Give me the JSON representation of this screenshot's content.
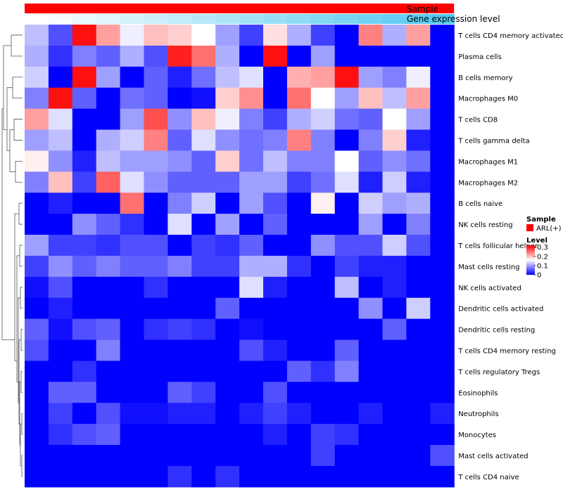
{
  "chart_data": {
    "type": "heatmap",
    "title": "",
    "annotation_labels": {
      "sample": "Sample",
      "gene_expression": "Gene expression level"
    },
    "legend": {
      "sample_title": "Sample",
      "sample_entry": "ARL(+)",
      "sample_color": "#ff0000",
      "level_title": "Level",
      "level_ticks": [
        "0.3",
        "0.2",
        "0.1",
        "0"
      ],
      "level_tick_values": [
        0.3,
        0.2,
        0.1,
        0
      ],
      "level_range": [
        0,
        0.32
      ],
      "colors": {
        "low": "#0000ff",
        "mid": "#ffffff",
        "high": "#ff0000",
        "mid_value": 0.16
      }
    },
    "gene_expression_gradient": [
      "#ffffff",
      "#50c8f0"
    ],
    "n_samples": 18,
    "rows": [
      "T cells CD4 memory activated",
      "Plasma cells",
      "B cells memory",
      "Macrophages M0",
      "T cells CD8",
      "T cells gamma delta",
      "Macrophages M1",
      "Macrophages M2",
      "B cells naive",
      "NK cells resting",
      "T cells follicular helper",
      "Mast cells resting",
      "NK cells activated",
      "Dendritic cells activated",
      "Dendritic cells resting",
      "T cells CD4 memory resting",
      "T cells regulatory  Tregs",
      "Eosinophils",
      "Neutrophils",
      "Monocytes",
      "Mast cells activated",
      "T cells CD4 naive"
    ],
    "values": [
      [
        0.12,
        0.05,
        0.31,
        0.22,
        0.15,
        0.2,
        0.19,
        0.16,
        0.1,
        0.04,
        0.18,
        0.11,
        0.04,
        0.0,
        0.24,
        0.11,
        0.22,
        0.0
      ],
      [
        0.11,
        0.03,
        0.08,
        0.06,
        0.11,
        0.05,
        0.3,
        0.25,
        0.11,
        0.0,
        0.31,
        0.0,
        0.1,
        0.0,
        0.0,
        0.0,
        0.0,
        0.0
      ],
      [
        0.13,
        0.0,
        0.31,
        0.1,
        0.0,
        0.06,
        0.02,
        0.07,
        0.12,
        0.14,
        0.0,
        0.21,
        0.22,
        0.31,
        0.1,
        0.08,
        0.15,
        0.0
      ],
      [
        0.08,
        0.31,
        0.06,
        0.0,
        0.07,
        0.06,
        0.0,
        0.01,
        0.19,
        0.23,
        0.0,
        0.25,
        0.16,
        0.1,
        0.2,
        0.12,
        0.22,
        0.0
      ],
      [
        0.22,
        0.14,
        0.0,
        0.0,
        0.1,
        0.27,
        0.09,
        0.2,
        0.15,
        0.08,
        0.04,
        0.11,
        0.13,
        0.07,
        0.06,
        0.16,
        0.1,
        0.0
      ],
      [
        0.1,
        0.12,
        0.0,
        0.11,
        0.13,
        0.24,
        0.06,
        0.14,
        0.09,
        0.07,
        0.08,
        0.24,
        0.08,
        0.0,
        0.08,
        0.19,
        0.02,
        0.0
      ],
      [
        0.17,
        0.09,
        0.02,
        0.12,
        0.1,
        0.1,
        0.09,
        0.06,
        0.19,
        0.07,
        0.12,
        0.08,
        0.08,
        0.16,
        0.06,
        0.09,
        0.07,
        0.0
      ],
      [
        0.08,
        0.2,
        0.04,
        0.26,
        0.14,
        0.09,
        0.06,
        0.06,
        0.06,
        0.1,
        0.1,
        0.04,
        0.07,
        0.14,
        0.02,
        0.13,
        0.02,
        0.0
      ],
      [
        0.0,
        0.02,
        0.0,
        0.0,
        0.25,
        0.0,
        0.08,
        0.13,
        0.0,
        0.1,
        0.05,
        0.0,
        0.17,
        0.0,
        0.13,
        0.1,
        0.11,
        0.0
      ],
      [
        0.0,
        0.0,
        0.09,
        0.06,
        0.03,
        0.0,
        0.14,
        0.0,
        0.1,
        0.0,
        0.06,
        0.0,
        0.0,
        0.0,
        0.1,
        0.0,
        0.08,
        0.0
      ],
      [
        0.1,
        0.04,
        0.04,
        0.03,
        0.05,
        0.05,
        0.0,
        0.04,
        0.03,
        0.06,
        0.0,
        0.0,
        0.09,
        0.05,
        0.05,
        0.13,
        0.05,
        0.0
      ],
      [
        0.04,
        0.09,
        0.06,
        0.08,
        0.06,
        0.06,
        0.08,
        0.04,
        0.04,
        0.11,
        0.11,
        0.03,
        0.0,
        0.04,
        0.02,
        0.02,
        0.0,
        0.0
      ],
      [
        0.01,
        0.05,
        0.0,
        0.0,
        0.0,
        0.03,
        0.0,
        0.0,
        0.0,
        0.14,
        0.02,
        0.0,
        0.0,
        0.12,
        0.0,
        0.02,
        0.0,
        0.0
      ],
      [
        0.0,
        0.02,
        0.0,
        0.0,
        0.0,
        0.0,
        0.0,
        0.0,
        0.06,
        0.0,
        0.0,
        0.0,
        0.0,
        0.0,
        0.09,
        0.0,
        0.13,
        0.0
      ],
      [
        0.06,
        0.01,
        0.05,
        0.06,
        0.0,
        0.03,
        0.04,
        0.03,
        0.0,
        0.01,
        0.0,
        0.0,
        0.0,
        0.0,
        0.0,
        0.06,
        0.0,
        0.0
      ],
      [
        0.05,
        0.0,
        0.0,
        0.08,
        0.0,
        0.0,
        0.0,
        0.0,
        0.0,
        0.05,
        0.02,
        0.0,
        0.0,
        0.06,
        0.0,
        0.0,
        0.0,
        0.0
      ],
      [
        0.0,
        0.0,
        0.03,
        0.0,
        0.0,
        0.0,
        0.0,
        0.0,
        0.0,
        0.0,
        0.0,
        0.06,
        0.03,
        0.08,
        0.0,
        0.0,
        0.0,
        0.0
      ],
      [
        0.0,
        0.06,
        0.06,
        0.0,
        0.0,
        0.0,
        0.06,
        0.04,
        0.0,
        0.0,
        0.05,
        0.0,
        0.0,
        0.0,
        0.0,
        0.0,
        0.0,
        0.0
      ],
      [
        0.0,
        0.04,
        0.0,
        0.05,
        0.01,
        0.01,
        0.02,
        0.02,
        0.0,
        0.02,
        0.04,
        0.02,
        0.0,
        0.0,
        0.02,
        0.0,
        0.0,
        0.02
      ],
      [
        0.0,
        0.03,
        0.05,
        0.06,
        0.0,
        0.0,
        0.0,
        0.0,
        0.0,
        0.0,
        0.02,
        0.0,
        0.04,
        0.03,
        0.0,
        0.0,
        0.0,
        0.0
      ],
      [
        0.0,
        0.0,
        0.0,
        0.0,
        0.0,
        0.0,
        0.0,
        0.0,
        0.0,
        0.0,
        0.0,
        0.0,
        0.04,
        0.0,
        0.0,
        0.0,
        0.0,
        0.05
      ],
      [
        0.0,
        0.0,
        0.0,
        0.0,
        0.0,
        0.0,
        0.03,
        0.0,
        0.03,
        0.0,
        0.0,
        0.0,
        0.0,
        0.0,
        0.0,
        0.0,
        0.0,
        0.0
      ]
    ]
  }
}
